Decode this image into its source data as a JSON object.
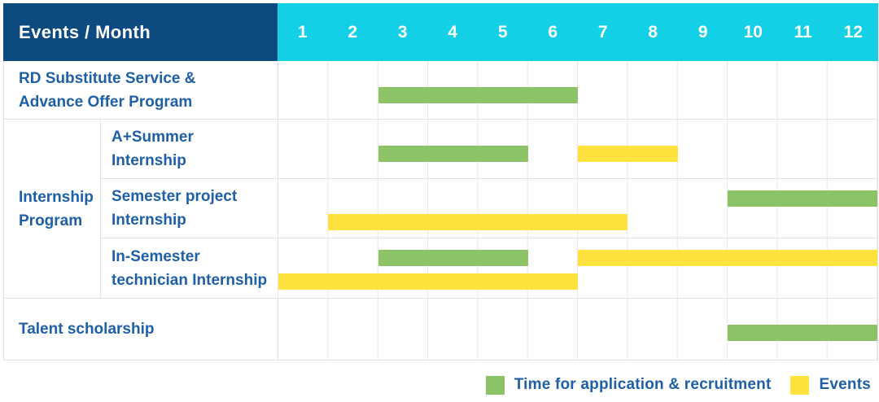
{
  "header": {
    "title": "Events / Month"
  },
  "months": [
    "1",
    "2",
    "3",
    "4",
    "5",
    "6",
    "7",
    "8",
    "9",
    "10",
    "11",
    "12"
  ],
  "colors": {
    "navy": "#0d4a80",
    "cyan": "#14d0e6",
    "green": "#8cc366",
    "yellow": "#fee23d",
    "blue": "#1e5fa6"
  },
  "legend": [
    {
      "type": "green",
      "label": "Time for application & recruitment"
    },
    {
      "type": "yellow",
      "label": "Events"
    }
  ],
  "chart_data": {
    "type": "gantt",
    "x_axis": {
      "label": "Month",
      "ticks": [
        1,
        2,
        3,
        4,
        5,
        6,
        7,
        8,
        9,
        10,
        11,
        12
      ]
    },
    "legend": {
      "green": "Time for application & recruitment",
      "yellow": "Events"
    },
    "rows": [
      {
        "label": "RD Substitute Service & Advance Offer Program",
        "lines": [
          "RD Substitute Service &",
          "Advance Offer Program"
        ],
        "group": null,
        "bars": [
          {
            "type": "green",
            "start": 3,
            "end": 6,
            "lane": "single"
          }
        ]
      },
      {
        "label": "A+Summer Internship",
        "lines": [
          "A+Summer",
          "Internship"
        ],
        "group": "Internship Program",
        "bars": [
          {
            "type": "green",
            "start": 3,
            "end": 5,
            "lane": "single"
          },
          {
            "type": "yellow",
            "start": 7,
            "end": 8,
            "lane": "single"
          }
        ]
      },
      {
        "label": "Semester project Internship",
        "lines": [
          "Semester project",
          "Internship"
        ],
        "group": "Internship Program",
        "bars": [
          {
            "type": "green",
            "start": 10,
            "end": 12,
            "lane": "top"
          },
          {
            "type": "yellow",
            "start": 2,
            "end": 7,
            "lane": "bottom"
          }
        ]
      },
      {
        "label": "In-Semester technician Internship",
        "lines": [
          "In-Semester",
          "technician Internship"
        ],
        "group": "Internship Program",
        "bars": [
          {
            "type": "green",
            "start": 3,
            "end": 5,
            "lane": "top"
          },
          {
            "type": "yellow",
            "start": 7,
            "end": 12,
            "lane": "top"
          },
          {
            "type": "yellow",
            "start": 1,
            "end": 6,
            "lane": "bottom"
          }
        ]
      },
      {
        "label": "Talent scholarship",
        "lines": [
          "Talent scholarship"
        ],
        "group": null,
        "bars": [
          {
            "type": "green",
            "start": 10,
            "end": 12,
            "lane": "single"
          }
        ]
      }
    ],
    "group_label_lines": [
      "Internship",
      "Program"
    ]
  }
}
